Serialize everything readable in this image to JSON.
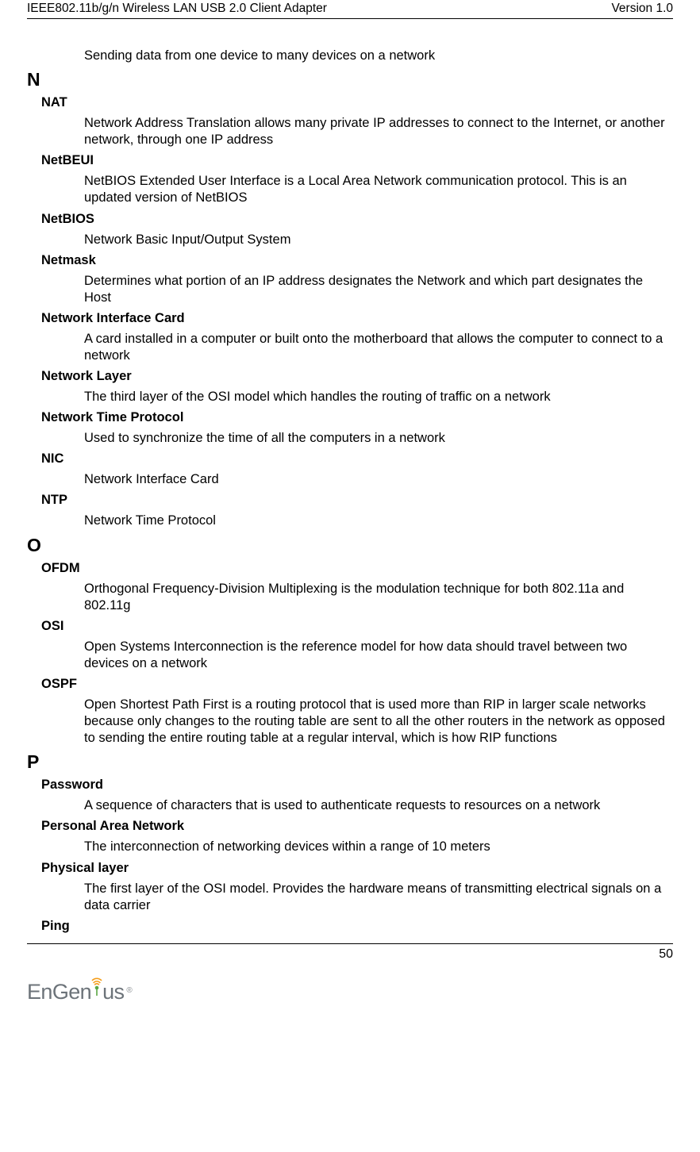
{
  "header": {
    "left": "IEEE802.11b/g/n Wireless LAN USB 2.0 Client Adapter",
    "right": "Version 1.0"
  },
  "page_number": "50",
  "logo": {
    "text_part1": "EnGen",
    "text_part2": "us",
    "color_text": "#6c7379",
    "color_arc1": "#f59e1b",
    "color_arc2": "#f59e1b",
    "color_arc3": "#f59e1b",
    "color_dot": "#5aa644"
  },
  "items": [
    {
      "kind": "def",
      "text": "Sending data from one device to many devices on a network"
    },
    {
      "kind": "letter",
      "text": "N"
    },
    {
      "kind": "term",
      "text": "NAT"
    },
    {
      "kind": "def",
      "text": "Network Address Translation allows many private IP addresses to connect to the Internet, or another network, through one IP address"
    },
    {
      "kind": "term",
      "text": "NetBEUI"
    },
    {
      "kind": "def",
      "text": "NetBIOS Extended User Interface is a Local Area Network communication protocol. This is an updated version of NetBIOS"
    },
    {
      "kind": "term",
      "text": "NetBIOS"
    },
    {
      "kind": "def",
      "text": "Network Basic Input/Output System"
    },
    {
      "kind": "term",
      "text": "Netmask"
    },
    {
      "kind": "def",
      "text": "Determines what portion of an IP address designates the Network and which part designates the Host"
    },
    {
      "kind": "term",
      "text": "Network Interface Card"
    },
    {
      "kind": "def",
      "text": "A card installed in a computer or built onto the motherboard that allows the computer to connect to a network"
    },
    {
      "kind": "term",
      "text": "Network Layer"
    },
    {
      "kind": "def",
      "text": "The third layer of the OSI model which handles the routing of traffic on a network"
    },
    {
      "kind": "term",
      "text": "Network Time Protocol"
    },
    {
      "kind": "def",
      "text": "Used to synchronize the time of all the computers in a network"
    },
    {
      "kind": "term",
      "text": "NIC"
    },
    {
      "kind": "def",
      "text": "Network Interface Card"
    },
    {
      "kind": "term",
      "text": "NTP"
    },
    {
      "kind": "def",
      "text": "Network Time Protocol"
    },
    {
      "kind": "letter",
      "text": "O"
    },
    {
      "kind": "term",
      "text": "OFDM"
    },
    {
      "kind": "def",
      "text": "Orthogonal Frequency-Division Multiplexing is the modulation technique for both 802.11a and 802.11g"
    },
    {
      "kind": "term",
      "text": "OSI"
    },
    {
      "kind": "def",
      "text": "Open Systems Interconnection is the reference model for how data should travel between two devices on a network"
    },
    {
      "kind": "term",
      "text": "OSPF"
    },
    {
      "kind": "def",
      "text": "Open Shortest Path First is a routing protocol that is used more than RIP in larger scale networks because only changes to the routing table are sent to all the other routers in the network as opposed to sending the entire routing table at a regular interval, which is how RIP functions"
    },
    {
      "kind": "letter",
      "text": "P"
    },
    {
      "kind": "term",
      "text": "Password"
    },
    {
      "kind": "def",
      "text": "A sequence of characters that is used to authenticate requests to resources on a network"
    },
    {
      "kind": "term",
      "text": "Personal Area Network"
    },
    {
      "kind": "def",
      "text": "The interconnection of networking devices within a range of 10 meters"
    },
    {
      "kind": "term",
      "text": "Physical layer"
    },
    {
      "kind": "def",
      "text": "The first layer of the OSI model. Provides the hardware means of transmitting electrical signals on a data carrier"
    },
    {
      "kind": "term",
      "text": "Ping"
    }
  ]
}
